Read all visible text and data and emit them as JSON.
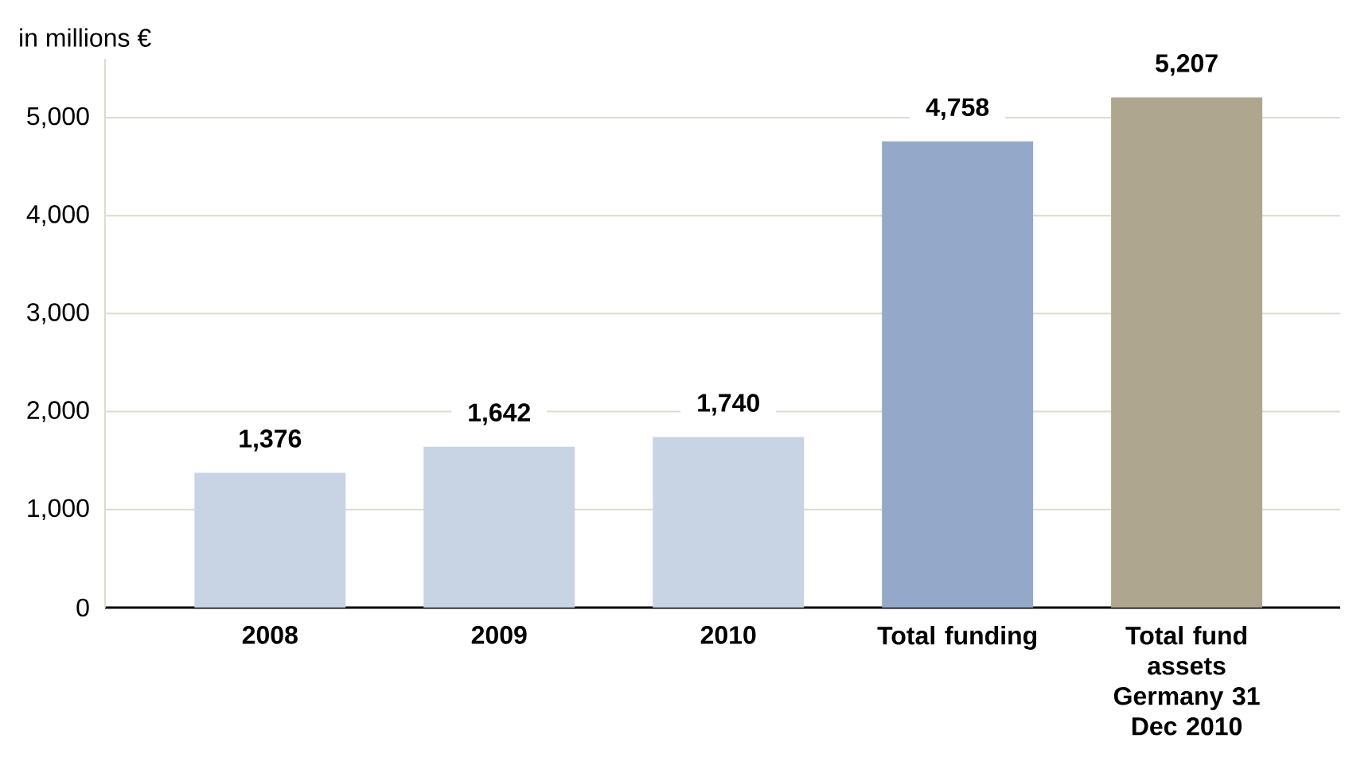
{
  "chart_data": {
    "type": "bar",
    "ylabel": "in millions €",
    "categories": [
      "2008",
      "2009",
      "2010",
      "Total funding",
      "Total fund assets Germany 31 Dec 2010"
    ],
    "values": [
      1376,
      1642,
      1740,
      4758,
      5207
    ],
    "colors": [
      "#c8d4e4",
      "#c8d4e4",
      "#c8d4e4",
      "#94a9c9",
      "#aea68e"
    ],
    "value_labels": [
      "1,376",
      "1,642",
      "1,740",
      "4,758",
      "5,207"
    ],
    "ylim": [
      0,
      5600
    ],
    "yticks": [
      {
        "value": 0,
        "label": "0"
      },
      {
        "value": 1000,
        "label": "1,000"
      },
      {
        "value": 2000,
        "label": "2,000"
      },
      {
        "value": 3000,
        "label": "3,000"
      },
      {
        "value": 4000,
        "label": "4,000"
      },
      {
        "value": 5000,
        "label": "5,000"
      }
    ],
    "grid": "y"
  }
}
